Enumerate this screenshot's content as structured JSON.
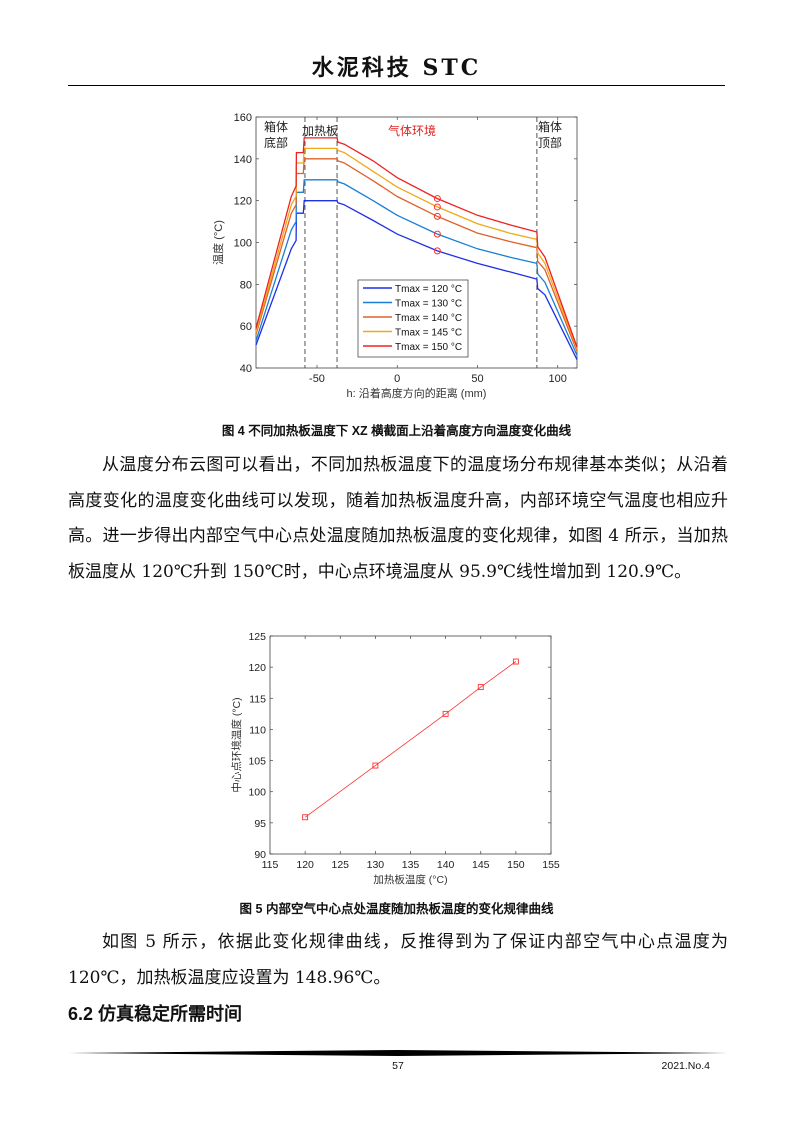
{
  "header": {
    "title": "水泥科技 STC"
  },
  "figure4": {
    "caption": "图 4 不同加热板温度下 XZ 横截面上沿着高度方向温度变化曲线",
    "annotations": {
      "bottom_box": [
        "箱体",
        "底部"
      ],
      "heater": "加热板",
      "gas": "气体环境",
      "top_box": [
        "箱体",
        "顶部"
      ]
    }
  },
  "figure5": {
    "caption": "图 5 内部空气中心点处温度随加热板温度的变化规律曲线"
  },
  "paragraph1": "从温度分布云图可以看出，不同加热板温度下的温度场分布规律基本类似；从沿着高度变化的温度变化曲线可以发现，随着加热板温度升高，内部环境空气温度也相应升高。进一步得出内部空气中心点处温度随加热板温度的变化规律，如图 4 所示，当加热板温度从 120℃升到 150℃时，中心点环境温度从 95.9℃线性增加到 120.9℃。",
  "paragraph2": "如图 5 所示，依据此变化规律曲线，反推得到为了保证内部空气中心点温度为 120℃，加热板温度应设置为 148.96℃。",
  "section_heading": "6.2  仿真稳定所需时间",
  "footer": {
    "page": "57",
    "issue": "2021.No.4"
  },
  "chart_data": [
    {
      "type": "line",
      "xlabel": "h: 沿着高度方向的距离 (mm)",
      "ylabel": "温度 (°C)",
      "xlim": [
        -88,
        112
      ],
      "ylim": [
        40,
        160
      ],
      "xticks": [
        -50,
        0,
        50,
        100
      ],
      "yticks": [
        40,
        60,
        80,
        100,
        120,
        140,
        160
      ],
      "grid": false,
      "legend_position": "bottom-center",
      "vlines": [
        -57.5,
        -37.5,
        87
      ],
      "markers": {
        "x": 25,
        "shape": "circle",
        "color": "#ff3030"
      },
      "series": [
        {
          "name": "Tmax = 120 °C",
          "color": "#1f2fe6",
          "x": [
            -88,
            -66,
            -63,
            -62.8,
            -58.5,
            -58,
            -37.5,
            -37,
            -33,
            -15,
            0,
            25,
            50,
            70,
            87,
            87.5,
            92,
            112
          ],
          "y": [
            51,
            97,
            101,
            114,
            114,
            120,
            120,
            119,
            118,
            110.5,
            104,
            96,
            90,
            86,
            82.5,
            78,
            75,
            44
          ]
        },
        {
          "name": "Tmax = 130 °C",
          "color": "#1a7fd4",
          "x": [
            -88,
            -66,
            -63,
            -62.8,
            -58.5,
            -58,
            -37.5,
            -37,
            -33,
            -15,
            0,
            25,
            50,
            70,
            87,
            87.5,
            92,
            112
          ],
          "y": [
            53,
            106,
            110,
            124,
            124,
            130,
            130,
            129,
            128,
            120,
            113,
            104,
            97,
            93,
            90,
            85,
            81,
            46
          ]
        },
        {
          "name": "Tmax = 140 °C",
          "color": "#e0602a",
          "x": [
            -88,
            -66,
            -63,
            -62.8,
            -58.5,
            -58,
            -37.5,
            -37,
            -33,
            -15,
            0,
            25,
            50,
            70,
            87,
            87.5,
            92,
            112
          ],
          "y": [
            56,
            114,
            118,
            133,
            133,
            140,
            140,
            139,
            138,
            129.5,
            122,
            112.5,
            104.5,
            100.5,
            97.5,
            91,
            87,
            48
          ]
        },
        {
          "name": "Tmax = 145 °C",
          "color": "#f0a818",
          "x": [
            -88,
            -66,
            -63,
            -62.8,
            -58.5,
            -58,
            -37.5,
            -37,
            -33,
            -15,
            0,
            25,
            50,
            70,
            87,
            87.5,
            92,
            112
          ],
          "y": [
            57,
            118,
            122,
            138,
            138,
            145,
            145,
            144,
            143,
            134,
            126.5,
            117,
            109,
            104.5,
            101.5,
            95,
            90,
            49
          ]
        },
        {
          "name": "Tmax = 150 °C",
          "color": "#f02020",
          "x": [
            -88,
            -66,
            -63,
            -62.8,
            -58.5,
            -58,
            -37.5,
            -37,
            -33,
            -15,
            0,
            25,
            50,
            70,
            87,
            87.5,
            92,
            112
          ],
          "y": [
            59,
            122,
            127,
            143,
            143,
            150,
            150,
            148,
            147,
            139,
            131,
            121,
            113,
            108.5,
            105,
            98,
            93,
            50
          ]
        }
      ]
    },
    {
      "type": "line",
      "xlabel": "加热板温度 (°C)",
      "ylabel": "中心点环境温度 (°C)",
      "xlim": [
        115,
        155
      ],
      "ylim": [
        90,
        125
      ],
      "xticks": [
        115,
        120,
        125,
        130,
        135,
        140,
        145,
        150,
        155
      ],
      "yticks": [
        90,
        95,
        100,
        105,
        110,
        115,
        120,
        125
      ],
      "grid": false,
      "series": [
        {
          "color": "#ff3030",
          "marker": "square",
          "x": [
            120,
            130,
            140,
            145,
            150
          ],
          "y": [
            95.9,
            104.2,
            112.5,
            116.8,
            120.9
          ]
        }
      ]
    }
  ]
}
